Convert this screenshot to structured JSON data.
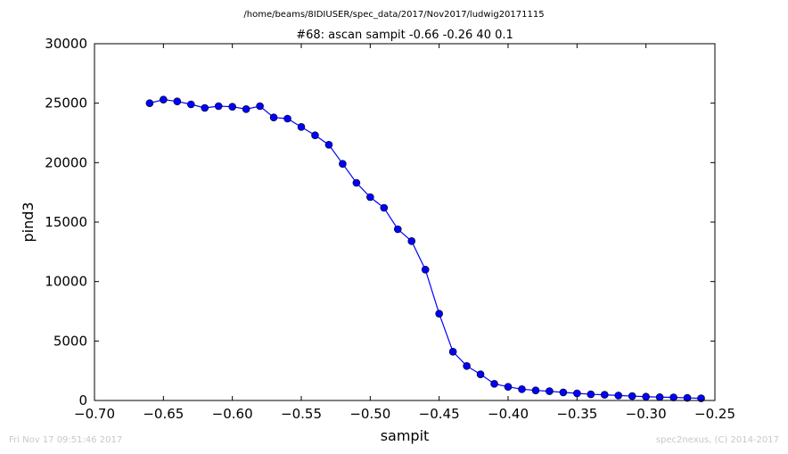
{
  "chart_data": {
    "type": "line",
    "suptitle": "/home/beams/8IDIUSER/spec_data/2017/Nov2017/ludwig20171115",
    "title": "#68: ascan  sampit -0.66 -0.26  40 0.1",
    "xlabel": "sampit",
    "ylabel": "pind3",
    "xlim": [
      -0.7,
      -0.25
    ],
    "ylim": [
      0,
      30000
    ],
    "xticks": [
      -0.7,
      -0.65,
      -0.6,
      -0.55,
      -0.5,
      -0.45,
      -0.4,
      -0.35,
      -0.3,
      -0.25
    ],
    "xtick_labels": [
      "−0.70",
      "−0.65",
      "−0.60",
      "−0.55",
      "−0.50",
      "−0.45",
      "−0.40",
      "−0.35",
      "−0.30",
      "−0.25"
    ],
    "yticks": [
      0,
      5000,
      10000,
      15000,
      20000,
      25000,
      30000
    ],
    "ytick_labels": [
      "0",
      "5000",
      "10000",
      "15000",
      "20000",
      "25000",
      "30000"
    ],
    "grid": false,
    "series": [
      {
        "color": "#0000ff",
        "marker": "circle",
        "x": [
          -0.66,
          -0.65,
          -0.64,
          -0.63,
          -0.62,
          -0.61,
          -0.6,
          -0.59,
          -0.58,
          -0.57,
          -0.56,
          -0.55,
          -0.54,
          -0.53,
          -0.52,
          -0.51,
          -0.5,
          -0.49,
          -0.48,
          -0.47,
          -0.46,
          -0.45,
          -0.44,
          -0.43,
          -0.42,
          -0.41,
          -0.4,
          -0.39,
          -0.38,
          -0.37,
          -0.36,
          -0.35,
          -0.34,
          -0.33,
          -0.32,
          -0.31,
          -0.3,
          -0.29,
          -0.28,
          -0.27,
          -0.26
        ],
        "y": [
          25000,
          25300,
          25150,
          24900,
          24600,
          24750,
          24700,
          24500,
          24750,
          23800,
          23700,
          23000,
          22300,
          21500,
          19900,
          18300,
          17100,
          16200,
          14400,
          13400,
          11000,
          7300,
          4100,
          2900,
          2200,
          1400,
          1150,
          950,
          850,
          780,
          680,
          600,
          520,
          480,
          420,
          370,
          320,
          280,
          260,
          220,
          180
        ]
      }
    ]
  },
  "footer": {
    "timestamp": "Fri Nov 17 09:51:46 2017",
    "credit": "spec2nexus, (C) 2014-2017"
  }
}
